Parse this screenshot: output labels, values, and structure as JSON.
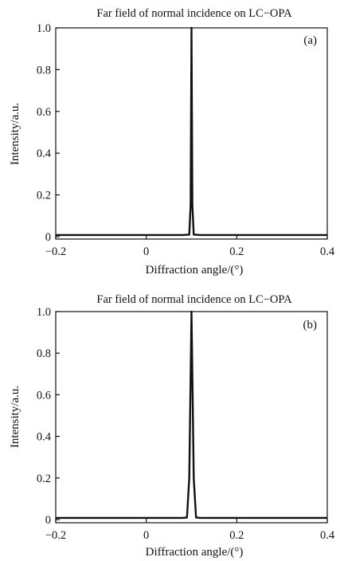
{
  "chart_data": [
    {
      "type": "line",
      "panel_label": "(a)",
      "title": "Far field of normal incidence on LC−OPA",
      "xlabel": "Diffraction angle/(°)",
      "ylabel": "Intensity/a.u.",
      "xlim": [
        -0.2,
        0.4
      ],
      "ylim": [
        0,
        1.0
      ],
      "xticks": [
        "−0.2",
        "0",
        "0.2",
        "0.4"
      ],
      "yticks": [
        "0",
        "0.2",
        "0.4",
        "0.6",
        "0.8",
        "1.0"
      ],
      "grid": false,
      "series": [
        {
          "x": [
            -0.2,
            0.08,
            0.095,
            0.098,
            0.1,
            0.102,
            0.105,
            0.12,
            0.4
          ],
          "y": [
            0.008,
            0.008,
            0.01,
            0.15,
            1.0,
            0.15,
            0.01,
            0.008,
            0.008
          ]
        }
      ]
    },
    {
      "type": "line",
      "panel_label": "(b)",
      "title": "Far field of normal incidence on LC−OPA",
      "xlabel": "Diffraction angle/(°)",
      "ylabel": "Intensity/a.u.",
      "xlim": [
        -0.2,
        0.4
      ],
      "ylim": [
        0,
        1.0
      ],
      "xticks": [
        "−0.2",
        "0",
        "0.2",
        "0.4"
      ],
      "yticks": [
        "0",
        "0.2",
        "0.4",
        "0.6",
        "0.8",
        "1.0"
      ],
      "grid": false,
      "series": [
        {
          "x": [
            -0.2,
            0.08,
            0.09,
            0.095,
            0.1,
            0.105,
            0.11,
            0.12,
            0.4
          ],
          "y": [
            0.008,
            0.008,
            0.01,
            0.2,
            1.0,
            0.2,
            0.01,
            0.008,
            0.008
          ]
        }
      ]
    }
  ]
}
